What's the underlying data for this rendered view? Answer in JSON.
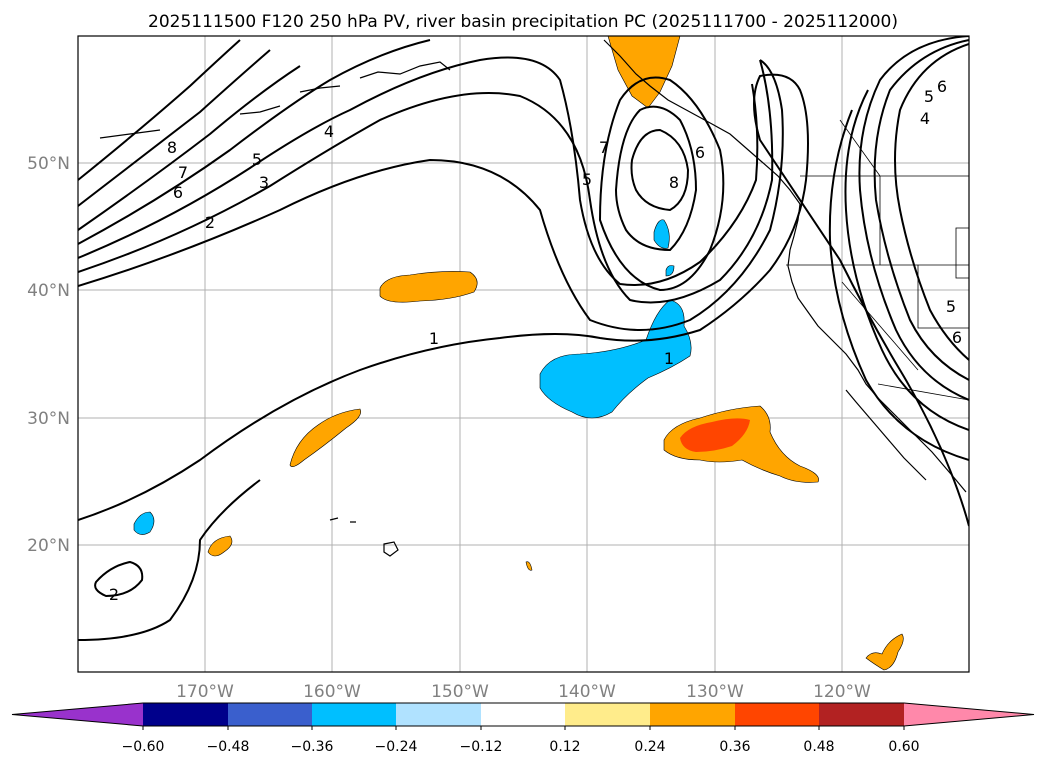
{
  "title": "2025111500 F120 250 hPa PV, river basin precipitation PC (2025111700 - 2025112000)",
  "map": {
    "lat_labels": [
      "50°N",
      "40°N",
      "30°N",
      "20°N"
    ],
    "lon_labels": [
      "170°W",
      "160°W",
      "150°W",
      "140°W",
      "130°W",
      "120°W"
    ]
  },
  "contour_labels": [
    "8",
    "7",
    "6",
    "5",
    "4",
    "3",
    "2",
    "1",
    "7",
    "5",
    "6",
    "8",
    "1",
    "2",
    "6",
    "5",
    "4",
    "5",
    "6"
  ],
  "colorbar": {
    "tick_labels": [
      "−0.60",
      "−0.48",
      "−0.36",
      "−0.24",
      "−0.12",
      "0.12",
      "0.24",
      "0.36",
      "0.48",
      "0.60"
    ],
    "colors": [
      "#9932cc",
      "#00008b",
      "#3a5fcd",
      "#00bfff",
      "#b0e2ff",
      "#ffffff",
      "#ffec8b",
      "#ffa500",
      "#ff4500",
      "#b22222",
      "#ff88aa"
    ]
  },
  "colors": {
    "positive_weak": "#ffa500",
    "positive_strong": "#ff4500",
    "negative": "#00bfff",
    "grid": "#b0b0b0"
  }
}
